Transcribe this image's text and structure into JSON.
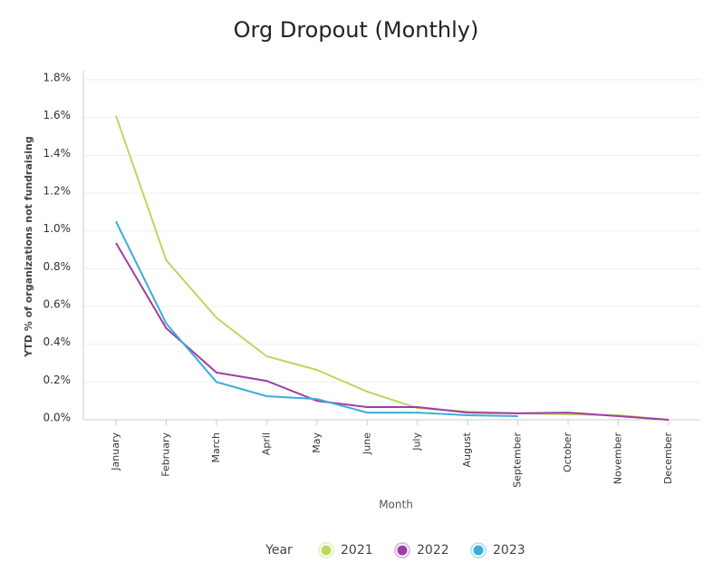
{
  "chart_data": {
    "type": "line",
    "title": "Org Dropout (Monthly)",
    "x_label": "Month",
    "y_label": "YTD % of organizations not fundraising",
    "legend_title": "Year",
    "legend": "bottom",
    "grid": true,
    "categories": [
      "January",
      "February",
      "March",
      "April",
      "May",
      "June",
      "July",
      "August",
      "September",
      "October",
      "November",
      "December"
    ],
    "series": [
      {
        "name": "2021",
        "color": "#bcd85f",
        "values": [
          1.61,
          0.845,
          0.54,
          0.336,
          0.264,
          0.149,
          0.062,
          0.043,
          0.034,
          0.029,
          0.024,
          0
        ]
      },
      {
        "name": "2022",
        "color": "#a03ca6",
        "values": [
          0.936,
          0.485,
          0.25,
          0.206,
          0.1,
          0.067,
          0.067,
          0.038,
          0.034,
          0.038,
          0.019,
          0
        ]
      },
      {
        "name": "2023",
        "color": "#3aaed8",
        "values": [
          1.05,
          0.51,
          0.2,
          0.125,
          0.11,
          0.038,
          0.038,
          0.024,
          0.019,
          null,
          null,
          null
        ]
      }
    ],
    "ylim": [
      0,
      1.8
    ],
    "yticks": [
      {
        "value": 0,
        "label": "0.0%"
      },
      {
        "value": 0.2,
        "label": "0.2%"
      },
      {
        "value": 0.4,
        "label": "0.4%"
      },
      {
        "value": 0.6,
        "label": "0.6%"
      },
      {
        "value": 0.8,
        "label": "0.8%"
      },
      {
        "value": 1.0,
        "label": "1.0%"
      },
      {
        "value": 1.2,
        "label": "1.2%"
      },
      {
        "value": 1.4,
        "label": "1.4%"
      },
      {
        "value": 1.6,
        "label": "1.6%"
      },
      {
        "value": 1.8,
        "label": "1.8%"
      }
    ]
  }
}
